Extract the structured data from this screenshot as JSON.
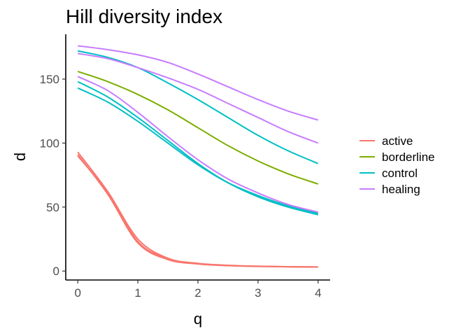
{
  "chart_data": {
    "type": "line",
    "title": "Hill diversity index",
    "xlabel": "q",
    "ylabel": "d",
    "xlim": [
      -0.2,
      4.2
    ],
    "ylim": [
      -7,
      185
    ],
    "x_ticks": [
      0,
      1,
      2,
      3,
      4
    ],
    "y_ticks": [
      0,
      50,
      100,
      150
    ],
    "grid": false,
    "legend_position": "right",
    "legend": [
      {
        "name": "active",
        "color": "#F8766D"
      },
      {
        "name": "borderline",
        "color": "#7CAE00"
      },
      {
        "name": "control",
        "color": "#00BFC4"
      },
      {
        "name": "healing",
        "color": "#C77CFF"
      }
    ],
    "x": [
      0,
      0.5,
      1,
      1.5,
      2,
      2.5,
      3,
      3.5,
      4
    ],
    "series": [
      {
        "group": "active",
        "color": "#F8766D",
        "values": [
          93,
          62,
          25,
          10,
          6,
          4.5,
          3.8,
          3.4,
          3.2
        ]
      },
      {
        "group": "active",
        "color": "#F8766D",
        "values": [
          91,
          60,
          22,
          9,
          5.5,
          4.2,
          3.6,
          3.3,
          3.1
        ]
      },
      {
        "group": "active",
        "color": "#F8766D",
        "values": [
          90,
          61,
          23,
          9.5,
          5.8,
          4.3,
          3.7,
          3.3,
          3.2
        ]
      },
      {
        "group": "borderline",
        "color": "#7CAE00",
        "values": [
          156,
          148,
          138,
          126,
          112,
          98,
          86,
          76,
          68
        ]
      },
      {
        "group": "control",
        "color": "#00BFC4",
        "values": [
          172,
          167,
          159,
          147,
          134,
          120,
          106,
          94,
          84
        ]
      },
      {
        "group": "control",
        "color": "#00BFC4",
        "values": [
          148,
          136,
          120,
          102,
          84,
          69,
          58,
          50,
          44
        ]
      },
      {
        "group": "control",
        "color": "#00BFC4",
        "values": [
          143,
          132,
          117,
          100,
          83,
          69,
          59,
          51,
          45
        ]
      },
      {
        "group": "healing",
        "color": "#C77CFF",
        "values": [
          176,
          173,
          169,
          163,
          154,
          144,
          134,
          125,
          118
        ]
      },
      {
        "group": "healing",
        "color": "#C77CFF",
        "values": [
          170,
          166,
          159,
          151,
          142,
          131,
          120,
          109,
          100
        ]
      },
      {
        "group": "healing",
        "color": "#C77CFF",
        "values": [
          152,
          141,
          124,
          105,
          87,
          72,
          61,
          52,
          46
        ]
      }
    ]
  }
}
